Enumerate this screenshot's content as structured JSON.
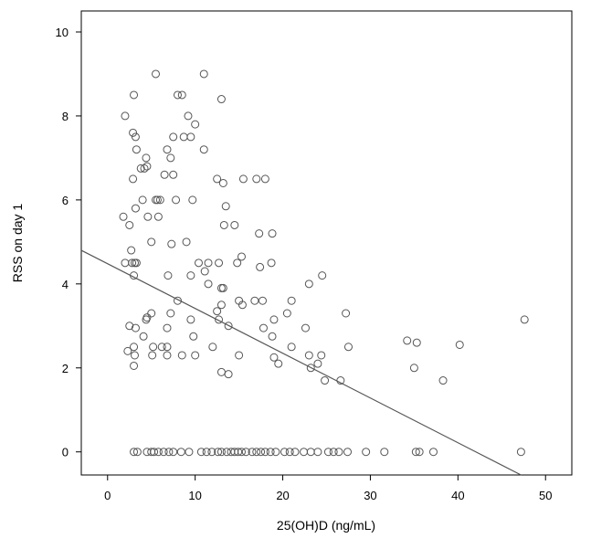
{
  "chart_data": {
    "type": "scatter",
    "xlabel": "25(OH)D (ng/mL)",
    "ylabel": "RSS on day 1",
    "xlim": [
      -3,
      53
    ],
    "ylim": [
      -0.55,
      10.5
    ],
    "xticks": [
      0,
      10,
      20,
      30,
      40,
      50
    ],
    "yticks": [
      0,
      2,
      4,
      6,
      8,
      10
    ],
    "grid": false,
    "legend": "none",
    "marker": "open-circle",
    "marker_color": "#555555",
    "line_color": "#555555",
    "fit_line": [
      [
        -3,
        4.8
      ],
      [
        47.2,
        -0.55
      ]
    ],
    "points": [
      [
        2.0,
        8.0
      ],
      [
        3.0,
        8.5
      ],
      [
        5.5,
        9.0
      ],
      [
        11.0,
        9.0
      ],
      [
        8.0,
        8.5
      ],
      [
        8.5,
        8.5
      ],
      [
        13.0,
        8.4
      ],
      [
        2.9,
        7.6
      ],
      [
        3.2,
        7.5
      ],
      [
        7.5,
        7.5
      ],
      [
        8.7,
        7.5
      ],
      [
        9.5,
        7.5
      ],
      [
        9.2,
        8.0
      ],
      [
        10.0,
        7.8
      ],
      [
        3.3,
        7.2
      ],
      [
        6.8,
        7.2
      ],
      [
        11.0,
        7.2
      ],
      [
        4.4,
        7.0
      ],
      [
        7.2,
        7.0
      ],
      [
        3.8,
        6.75
      ],
      [
        4.2,
        6.75
      ],
      [
        4.5,
        6.8
      ],
      [
        6.5,
        6.6
      ],
      [
        7.5,
        6.6
      ],
      [
        2.9,
        6.5
      ],
      [
        12.5,
        6.5
      ],
      [
        13.2,
        6.4
      ],
      [
        15.5,
        6.5
      ],
      [
        17.0,
        6.5
      ],
      [
        18.0,
        6.5
      ],
      [
        4.0,
        6.0
      ],
      [
        5.5,
        6.0
      ],
      [
        5.7,
        6.0
      ],
      [
        6.0,
        6.0
      ],
      [
        7.8,
        6.0
      ],
      [
        9.7,
        6.0
      ],
      [
        3.2,
        5.8
      ],
      [
        13.5,
        5.85
      ],
      [
        1.8,
        5.6
      ],
      [
        4.6,
        5.6
      ],
      [
        5.8,
        5.6
      ],
      [
        13.3,
        5.4
      ],
      [
        14.5,
        5.4
      ],
      [
        2.5,
        5.4
      ],
      [
        17.3,
        5.2
      ],
      [
        18.8,
        5.2
      ],
      [
        5.0,
        5.0
      ],
      [
        7.3,
        4.95
      ],
      [
        9.0,
        5.0
      ],
      [
        2.7,
        4.8
      ],
      [
        15.3,
        4.65
      ],
      [
        2.0,
        4.5
      ],
      [
        2.8,
        4.5
      ],
      [
        3.1,
        4.5
      ],
      [
        3.3,
        4.5
      ],
      [
        10.4,
        4.5
      ],
      [
        11.5,
        4.5
      ],
      [
        12.7,
        4.5
      ],
      [
        14.8,
        4.5
      ],
      [
        17.4,
        4.4
      ],
      [
        18.7,
        4.5
      ],
      [
        3.0,
        4.2
      ],
      [
        6.9,
        4.2
      ],
      [
        9.5,
        4.2
      ],
      [
        11.1,
        4.3
      ],
      [
        24.5,
        4.2
      ],
      [
        11.5,
        4.0
      ],
      [
        23.0,
        4.0
      ],
      [
        13.0,
        3.9
      ],
      [
        13.2,
        3.9
      ],
      [
        8.0,
        3.6
      ],
      [
        15.0,
        3.6
      ],
      [
        16.8,
        3.6
      ],
      [
        17.7,
        3.6
      ],
      [
        21.0,
        3.6
      ],
      [
        13.0,
        3.5
      ],
      [
        15.4,
        3.5
      ],
      [
        12.5,
        3.35
      ],
      [
        5.0,
        3.3
      ],
      [
        7.2,
        3.3
      ],
      [
        4.5,
        3.2
      ],
      [
        4.4,
        3.15
      ],
      [
        9.5,
        3.15
      ],
      [
        12.7,
        3.15
      ],
      [
        19.0,
        3.15
      ],
      [
        20.5,
        3.3
      ],
      [
        27.2,
        3.3
      ],
      [
        47.6,
        3.15
      ],
      [
        2.5,
        3.0
      ],
      [
        3.2,
        2.95
      ],
      [
        13.8,
        3.0
      ],
      [
        6.8,
        2.95
      ],
      [
        17.8,
        2.95
      ],
      [
        22.6,
        2.95
      ],
      [
        4.1,
        2.75
      ],
      [
        9.8,
        2.75
      ],
      [
        18.8,
        2.75
      ],
      [
        3.0,
        2.5
      ],
      [
        5.2,
        2.5
      ],
      [
        6.2,
        2.5
      ],
      [
        6.8,
        2.5
      ],
      [
        12.0,
        2.5
      ],
      [
        21.0,
        2.5
      ],
      [
        27.5,
        2.5
      ],
      [
        34.2,
        2.65
      ],
      [
        35.3,
        2.6
      ],
      [
        40.2,
        2.55
      ],
      [
        2.3,
        2.4
      ],
      [
        3.1,
        2.3
      ],
      [
        5.1,
        2.3
      ],
      [
        6.8,
        2.3
      ],
      [
        8.5,
        2.3
      ],
      [
        10.0,
        2.3
      ],
      [
        15.0,
        2.3
      ],
      [
        23.0,
        2.3
      ],
      [
        24.4,
        2.3
      ],
      [
        19.0,
        2.25
      ],
      [
        19.5,
        2.1
      ],
      [
        24.0,
        2.1
      ],
      [
        3.0,
        2.05
      ],
      [
        13.0,
        1.9
      ],
      [
        13.8,
        1.85
      ],
      [
        23.2,
        2.0
      ],
      [
        35.0,
        2.0
      ],
      [
        24.8,
        1.7
      ],
      [
        26.6,
        1.7
      ],
      [
        38.3,
        1.7
      ],
      [
        3.0,
        0.0
      ],
      [
        3.4,
        0.0
      ],
      [
        4.5,
        0.0
      ],
      [
        5.0,
        0.0
      ],
      [
        5.3,
        0.0
      ],
      [
        5.8,
        0.0
      ],
      [
        6.4,
        0.0
      ],
      [
        7.0,
        0.0
      ],
      [
        7.5,
        0.0
      ],
      [
        8.4,
        0.0
      ],
      [
        9.3,
        0.0
      ],
      [
        10.7,
        0.0
      ],
      [
        11.3,
        0.0
      ],
      [
        11.9,
        0.0
      ],
      [
        12.6,
        0.0
      ],
      [
        13.0,
        0.0
      ],
      [
        13.6,
        0.0
      ],
      [
        14.1,
        0.0
      ],
      [
        14.5,
        0.0
      ],
      [
        14.9,
        0.0
      ],
      [
        15.3,
        0.0
      ],
      [
        15.8,
        0.0
      ],
      [
        16.5,
        0.0
      ],
      [
        17.0,
        0.0
      ],
      [
        17.5,
        0.0
      ],
      [
        18.0,
        0.0
      ],
      [
        18.6,
        0.0
      ],
      [
        19.2,
        0.0
      ],
      [
        20.2,
        0.0
      ],
      [
        20.8,
        0.0
      ],
      [
        21.4,
        0.0
      ],
      [
        22.4,
        0.0
      ],
      [
        23.2,
        0.0
      ],
      [
        24.0,
        0.0
      ],
      [
        25.2,
        0.0
      ],
      [
        25.8,
        0.0
      ],
      [
        26.4,
        0.0
      ],
      [
        27.4,
        0.0
      ],
      [
        29.5,
        0.0
      ],
      [
        31.6,
        0.0
      ],
      [
        35.2,
        0.0
      ],
      [
        35.6,
        0.0
      ],
      [
        37.2,
        0.0
      ],
      [
        47.2,
        0.0
      ]
    ]
  }
}
